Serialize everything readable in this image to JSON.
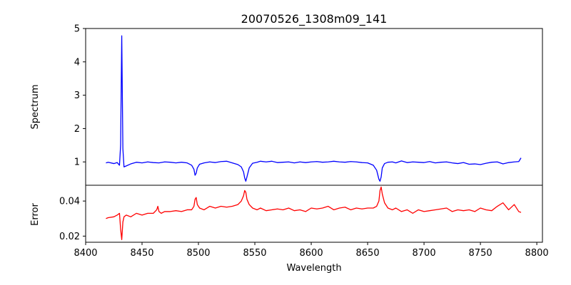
{
  "chart_data": [
    {
      "type": "line",
      "title": "20070526_1308m09_141",
      "xlabel": "",
      "ylabel": "Spectrum",
      "xlim": [
        8400,
        8805
      ],
      "ylim": [
        0.3,
        5.0
      ],
      "yticks": [
        1,
        2,
        3,
        4,
        5
      ],
      "grid": false,
      "series": [
        {
          "color": "#0000ff",
          "x": [
            8418,
            8420,
            8425,
            8428,
            8430,
            8431,
            8432,
            8433,
            8434,
            8436,
            8440,
            8445,
            8450,
            8455,
            8460,
            8465,
            8470,
            8475,
            8480,
            8485,
            8490,
            8494,
            8496,
            8497,
            8498,
            8499,
            8501,
            8505,
            8510,
            8515,
            8520,
            8525,
            8530,
            8535,
            8538,
            8540,
            8541,
            8542,
            8543,
            8545,
            8548,
            8552,
            8555,
            8560,
            8565,
            8570,
            8575,
            8580,
            8585,
            8590,
            8595,
            8600,
            8605,
            8610,
            8615,
            8620,
            8625,
            8630,
            8635,
            8640,
            8645,
            8650,
            8655,
            8658,
            8660,
            8661,
            8662,
            8663,
            8665,
            8668,
            8672,
            8675,
            8680,
            8685,
            8690,
            8695,
            8700,
            8705,
            8710,
            8715,
            8720,
            8725,
            8730,
            8735,
            8740,
            8745,
            8750,
            8755,
            8760,
            8765,
            8770,
            8775,
            8780,
            8784,
            8786
          ],
          "y": [
            0.97,
            0.99,
            0.95,
            0.98,
            0.9,
            1.5,
            4.78,
            1.4,
            0.85,
            0.88,
            0.94,
            0.99,
            0.97,
            1.0,
            0.98,
            0.97,
            1.0,
            0.99,
            0.97,
            0.99,
            0.97,
            0.9,
            0.78,
            0.6,
            0.66,
            0.82,
            0.93,
            0.97,
            1.0,
            0.98,
            1.01,
            1.02,
            0.97,
            0.92,
            0.85,
            0.7,
            0.52,
            0.42,
            0.55,
            0.82,
            0.96,
            0.99,
            1.02,
            1.0,
            1.02,
            0.98,
            0.99,
            1.0,
            0.97,
            1.0,
            0.98,
            1.0,
            1.01,
            0.99,
            1.0,
            1.02,
            1.0,
            0.99,
            1.01,
            1.0,
            0.98,
            0.97,
            0.9,
            0.75,
            0.48,
            0.42,
            0.55,
            0.82,
            0.95,
            0.99,
            1.0,
            0.97,
            1.03,
            0.98,
            1.0,
            0.99,
            0.98,
            1.01,
            0.97,
            0.99,
            1.0,
            0.97,
            0.95,
            0.98,
            0.93,
            0.94,
            0.92,
            0.96,
            0.99,
            1.0,
            0.94,
            0.98,
            1.0,
            1.01,
            1.12
          ]
        }
      ]
    },
    {
      "type": "line",
      "title": "",
      "xlabel": "Wavelength",
      "ylabel": "Error",
      "xlim": [
        8400,
        8805
      ],
      "ylim": [
        0.0165,
        0.049
      ],
      "xticks": [
        8400,
        8450,
        8500,
        8550,
        8600,
        8650,
        8700,
        8750,
        8800
      ],
      "yticks": [
        0.02,
        0.04
      ],
      "ytick_labels": [
        "0.02",
        "0.04"
      ],
      "grid": false,
      "series": [
        {
          "color": "#ff0000",
          "x": [
            8418,
            8420,
            8425,
            8428,
            8430,
            8431,
            8432,
            8433,
            8434,
            8436,
            8440,
            8445,
            8450,
            8455,
            8460,
            8463,
            8464,
            8465,
            8467,
            8470,
            8475,
            8480,
            8485,
            8490,
            8494,
            8496,
            8497,
            8498,
            8499,
            8501,
            8505,
            8510,
            8515,
            8520,
            8525,
            8530,
            8535,
            8538,
            8540,
            8541,
            8542,
            8543,
            8545,
            8548,
            8552,
            8555,
            8560,
            8565,
            8570,
            8575,
            8580,
            8585,
            8590,
            8595,
            8600,
            8605,
            8610,
            8615,
            8620,
            8625,
            8630,
            8635,
            8640,
            8645,
            8650,
            8655,
            8658,
            8660,
            8661,
            8662,
            8663,
            8665,
            8668,
            8672,
            8675,
            8680,
            8685,
            8690,
            8695,
            8700,
            8705,
            8710,
            8715,
            8720,
            8725,
            8730,
            8735,
            8740,
            8745,
            8750,
            8755,
            8760,
            8765,
            8770,
            8775,
            8780,
            8784,
            8786
          ],
          "y": [
            0.03,
            0.0305,
            0.031,
            0.032,
            0.033,
            0.024,
            0.018,
            0.028,
            0.031,
            0.032,
            0.031,
            0.033,
            0.032,
            0.033,
            0.033,
            0.035,
            0.037,
            0.034,
            0.033,
            0.034,
            0.034,
            0.0345,
            0.034,
            0.035,
            0.035,
            0.037,
            0.041,
            0.042,
            0.038,
            0.036,
            0.035,
            0.037,
            0.036,
            0.037,
            0.0365,
            0.037,
            0.038,
            0.04,
            0.043,
            0.046,
            0.045,
            0.041,
            0.038,
            0.036,
            0.035,
            0.036,
            0.0345,
            0.035,
            0.0355,
            0.035,
            0.036,
            0.0345,
            0.035,
            0.034,
            0.036,
            0.0355,
            0.036,
            0.037,
            0.035,
            0.036,
            0.0365,
            0.035,
            0.036,
            0.0355,
            0.036,
            0.036,
            0.037,
            0.04,
            0.046,
            0.048,
            0.044,
            0.039,
            0.036,
            0.035,
            0.036,
            0.034,
            0.035,
            0.033,
            0.035,
            0.034,
            0.0345,
            0.035,
            0.0355,
            0.036,
            0.034,
            0.035,
            0.0345,
            0.035,
            0.034,
            0.036,
            0.035,
            0.0345,
            0.037,
            0.039,
            0.035,
            0.038,
            0.034,
            0.0335
          ]
        }
      ]
    }
  ]
}
